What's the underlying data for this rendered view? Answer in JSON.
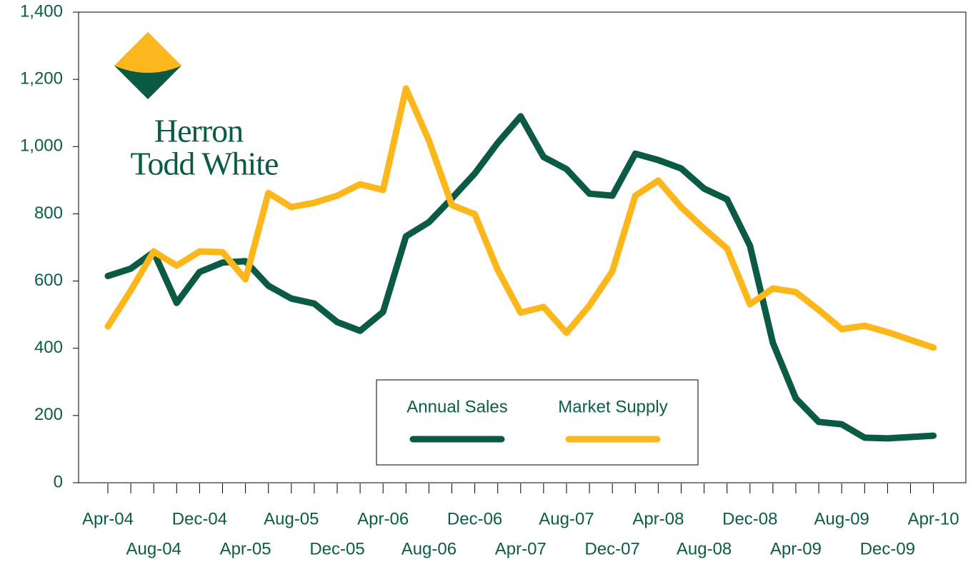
{
  "chart_data": {
    "type": "line",
    "logo": {
      "line1": "Herron",
      "line2": "Todd White"
    },
    "categories": [
      "Apr-04",
      null,
      "Aug-04",
      null,
      "Dec-04",
      null,
      "Apr-05",
      null,
      "Aug-05",
      null,
      "Dec-05",
      null,
      "Apr-06",
      null,
      "Aug-06",
      null,
      "Dec-06",
      null,
      "Apr-07",
      null,
      "Aug-07",
      null,
      "Dec-07",
      null,
      "Apr-08",
      null,
      "Aug-08",
      null,
      "Dec-08",
      null,
      "Apr-09",
      null,
      "Aug-09",
      null,
      "Dec-09",
      null,
      "Apr-10"
    ],
    "series": [
      {
        "name": "Annual Sales",
        "color": "#0b5a43",
        "values": [
          615,
          637,
          686,
          535,
          627,
          655,
          659,
          586,
          548,
          533,
          478,
          452,
          508,
          733,
          775,
          846,
          920,
          1011,
          1090,
          969,
          933,
          860,
          854,
          979,
          960,
          935,
          875,
          843,
          705,
          416,
          251,
          181,
          174,
          134,
          132,
          136,
          140
        ]
      },
      {
        "name": "Market Supply",
        "color": "#fbb71c",
        "values": [
          465,
          572,
          688,
          646,
          688,
          686,
          605,
          862,
          820,
          833,
          854,
          888,
          871,
          1173,
          1018,
          826,
          799,
          633,
          506,
          523,
          446,
          527,
          629,
          854,
          899,
          820,
          756,
          697,
          531,
          578,
          567,
          514,
          457,
          467,
          448,
          425,
          402
        ]
      }
    ],
    "ylim": [
      0,
      1400
    ],
    "yticks": [
      0,
      200,
      400,
      600,
      800,
      {
        "value": 1000,
        "label": "1,000"
      },
      {
        "value": 1200,
        "label": "1,200"
      },
      {
        "value": 1400,
        "label": "1,400"
      }
    ]
  }
}
